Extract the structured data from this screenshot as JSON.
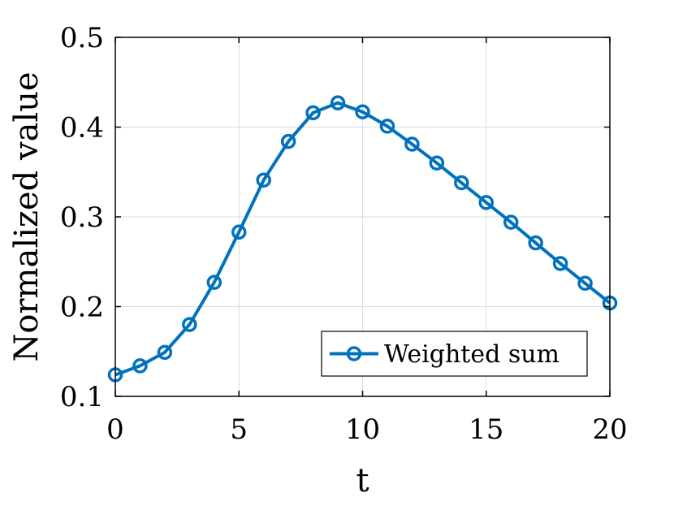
{
  "chart_data": {
    "type": "line",
    "title": "",
    "xlabel": "t",
    "ylabel": "Normalized value",
    "xlim": [
      0,
      20
    ],
    "ylim": [
      0.1,
      0.5
    ],
    "xticks": [
      0,
      5,
      10,
      15,
      20
    ],
    "yticks": [
      0.1,
      0.2,
      0.3,
      0.4,
      0.5
    ],
    "xtick_labels": [
      "0",
      "5",
      "10",
      "15",
      "20"
    ],
    "ytick_labels": [
      "0.1",
      "0.2",
      "0.3",
      "0.4",
      "0.5"
    ],
    "grid": true,
    "legend_position": "bottom-right",
    "x": [
      0,
      1,
      2,
      3,
      4,
      5,
      6,
      7,
      8,
      9,
      10,
      11,
      12,
      13,
      14,
      15,
      16,
      17,
      18,
      19,
      20
    ],
    "series": [
      {
        "name": "Weighted sum",
        "color": "#0072BD",
        "marker": "circle",
        "values": [
          0.124,
          0.134,
          0.149,
          0.18,
          0.227,
          0.283,
          0.341,
          0.384,
          0.416,
          0.427,
          0.417,
          0.401,
          0.381,
          0.36,
          0.338,
          0.316,
          0.294,
          0.271,
          0.248,
          0.226,
          0.204
        ]
      }
    ]
  }
}
